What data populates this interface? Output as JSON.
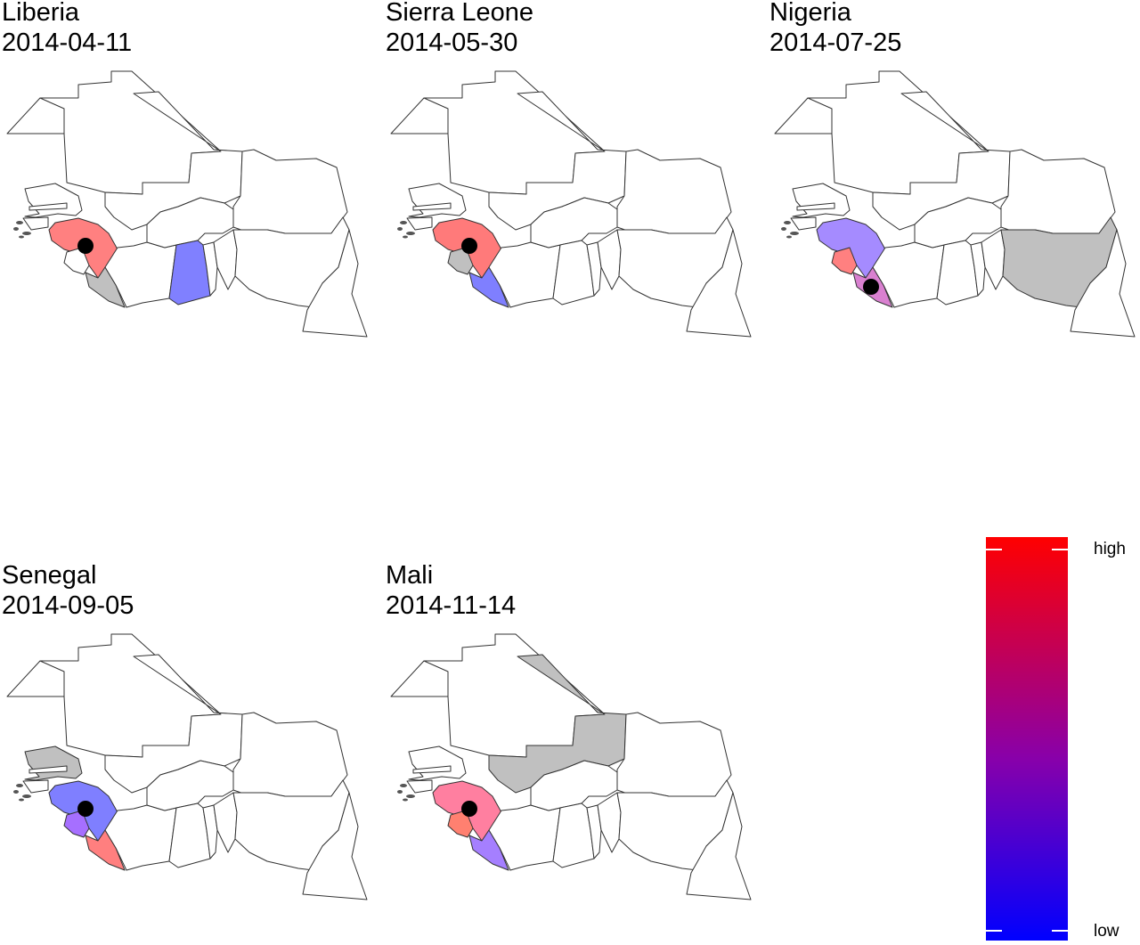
{
  "panels": [
    {
      "title": "Liberia",
      "date": "2014-04-11",
      "fills": {
        "guinea": "#ff8080",
        "liberia": "#c0c0c0",
        "ghana": "#8080ff"
      }
    },
    {
      "title": "Sierra Leone",
      "date": "2014-05-30",
      "fills": {
        "guinea": "#ff7a7a",
        "sierraleone": "#c0c0c0",
        "liberia": "#7f7fff"
      }
    },
    {
      "title": "Nigeria",
      "date": "2014-07-25",
      "fills": {
        "guinea": "#a58bff",
        "sierraleone": "#ff8080",
        "liberia": "#d980d0",
        "nigeria": "#c0c0c0"
      }
    },
    {
      "title": "Senegal",
      "date": "2014-09-05",
      "fills": {
        "guinea": "#7f7fff",
        "sierraleone": "#a66fff",
        "liberia": "#ff7f7f",
        "senegal": "#c0c0c0"
      }
    },
    {
      "title": "Mali",
      "date": "2014-11-14",
      "fills": {
        "guinea": "#ff7fa0",
        "sierraleone": "#ff8070",
        "liberia": "#a57fff",
        "mali": "#c0c0c0"
      }
    }
  ],
  "legend": {
    "high_label": "high",
    "low_label": "low",
    "colors": {
      "high": "#ff0000",
      "low": "#0000ff"
    }
  }
}
